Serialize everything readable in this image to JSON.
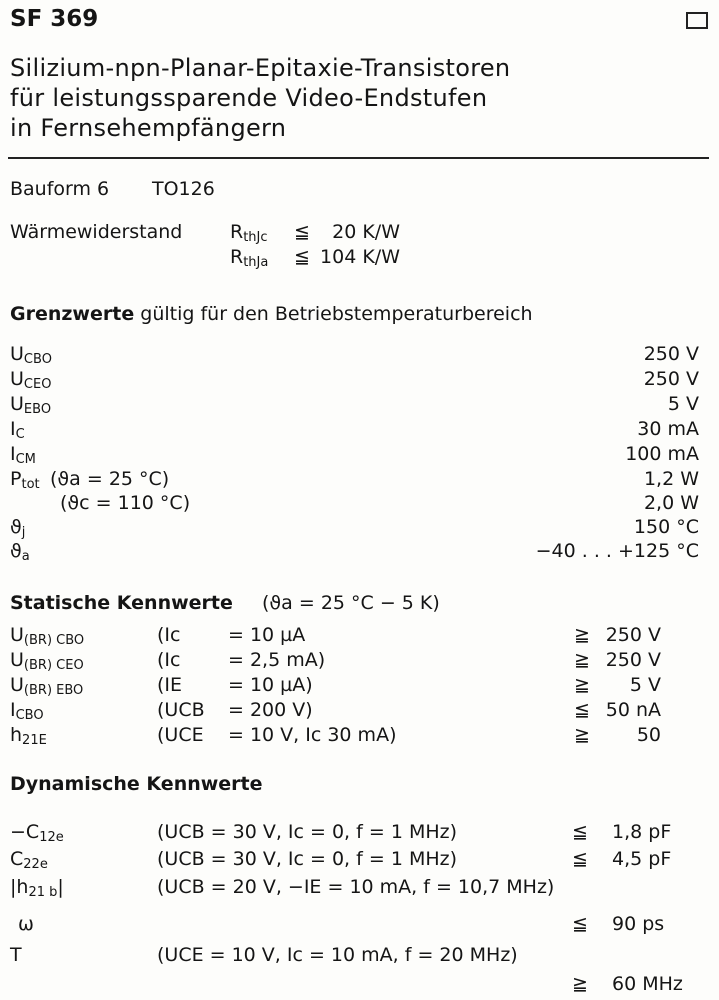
{
  "header": {
    "title": "SF 369",
    "subtitle_lines": [
      "Silizium-npn-Planar-Epitaxie-Transistoren",
      "für leistungssparende Video-Endstufen",
      "in Fernsehempfängern"
    ]
  },
  "package": {
    "label": "Bauform 6",
    "value": "TO126"
  },
  "thermal": {
    "label": "Wärmewiderstand",
    "rows": [
      {
        "sym": "R",
        "sub": "thJc",
        "rel": "≦",
        "value": "20 K/W"
      },
      {
        "sym": "R",
        "sub": "thJa",
        "rel": "≦",
        "value": "104 K/W"
      }
    ]
  },
  "limits": {
    "heading_bold": "Grenzwerte",
    "heading_rest": " gültig für den Betriebstemperaturbereich",
    "rows": [
      {
        "sym": "U",
        "sub": "CBO",
        "cond": "",
        "value": "250 V"
      },
      {
        "sym": "U",
        "sub": "CEO",
        "cond": "",
        "value": "250 V"
      },
      {
        "sym": "U",
        "sub": "EBO",
        "cond": "",
        "value": "5 V"
      },
      {
        "sym": "I",
        "sub": "C",
        "cond": "",
        "value": "30 mA"
      },
      {
        "sym": "I",
        "sub": "CM",
        "cond": "",
        "value": "100 mA"
      },
      {
        "sym": "P",
        "sub": "tot",
        "cond": "(ϑa = 25 °C)",
        "value": "1,2 W"
      },
      {
        "sym": "",
        "sub": "",
        "cond": "(ϑc = 110 °C)",
        "value": "2,0 W"
      },
      {
        "sym": "ϑ",
        "sub": "j",
        "cond": "",
        "value": "150 °C"
      },
      {
        "sym": "ϑ",
        "sub": "a",
        "cond": "",
        "value": "−40 . . . +125 °C"
      }
    ]
  },
  "static": {
    "heading": "Statische Kennwerte",
    "condition": "(ϑa = 25 °C − 5 K)",
    "rows": [
      {
        "sym": "U",
        "sub": "(BR) CBO",
        "param": "(Ic",
        "eq": "= 10 µA",
        "rel": "≧",
        "value": "250 V"
      },
      {
        "sym": "U",
        "sub": "(BR) CEO",
        "param": "(Ic",
        "eq": "= 2,5 mA)",
        "rel": "≧",
        "value": "250 V"
      },
      {
        "sym": "U",
        "sub": "(BR) EBO",
        "param": "(IE",
        "eq": "= 10 µA)",
        "rel": "≧",
        "value": "5 V"
      },
      {
        "sym": "I",
        "sub": "CBO",
        "param": "(UCB",
        "eq": "= 200 V)",
        "rel": "≦",
        "value": "50 nA"
      },
      {
        "sym": "h",
        "sub": "21E",
        "param": "(UCE",
        "eq": "= 10 V, Ic 30 mA)",
        "rel": "≧",
        "value": "50"
      }
    ]
  },
  "dynamic": {
    "heading": "Dynamische Kennwerte",
    "rows": [
      {
        "sym": "−C",
        "sub": "12e",
        "cond": "(UCB = 30 V,   Ic = 0, f = 1 MHz)",
        "rel": "≦",
        "value": "1,8 pF"
      },
      {
        "sym": "C",
        "sub": "22e",
        "cond": "(UCB = 30 V,   Ic = 0, f = 1 MHz)",
        "rel": "≦",
        "value": "4,5 pF"
      },
      {
        "sym": "|h",
        "sub": "21 b",
        "sym_end": "|",
        "cond": "(UCB = 20 V,  −IE = 10 mA, f = 10,7 MHz)",
        "rel": "",
        "value": ""
      },
      {
        "sym": "ω",
        "sub": "",
        "cond": "",
        "rel": "≦",
        "value": "90 ps"
      },
      {
        "sym": "T",
        "sub": "",
        "cond": "(UCE = 10 V, Ic = 10 mA, f = 20 MHz)",
        "rel": "",
        "value": ""
      },
      {
        "sym": "",
        "sub": "",
        "cond": "",
        "rel": "≧",
        "value": "60 MHz"
      }
    ]
  }
}
